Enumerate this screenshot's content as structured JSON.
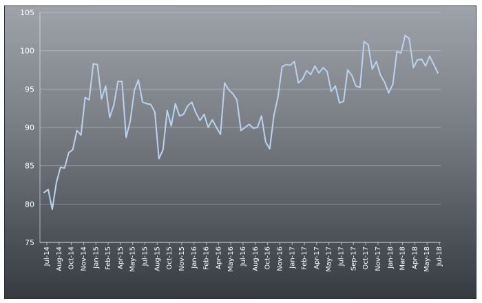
{
  "chart_data": {
    "type": "line",
    "title": "",
    "xlabel": "",
    "ylabel": "",
    "ylim": [
      75,
      105
    ],
    "yticks": [
      75,
      80,
      85,
      90,
      95,
      100,
      105
    ],
    "grid": true,
    "legend": "none",
    "line_color": "#b8d4f0",
    "x_tick_labels": [
      "Jul-14",
      "Aug-14",
      "Oct-14",
      "Nov-14",
      "Jan-15",
      "Feb-15",
      "Apr-15",
      "May-15",
      "Jul-15",
      "Aug-15",
      "Oct-15",
      "Nov-15",
      "Jan-16",
      "Feb-16",
      "Apr-16",
      "May-16",
      "Jul-16",
      "Aug-16",
      "Oct-16",
      "Nov-16",
      "Jan-17",
      "Feb-17",
      "Apr-17",
      "May-17",
      "Jul-17",
      "Sep-17",
      "Oct-17",
      "Nov-17",
      "Jan-18",
      "Mar-18",
      "Apr-18",
      "May-18",
      "Jul-18"
    ],
    "series": [
      {
        "values": [
          81.5,
          81.9,
          79.3,
          82.8,
          84.8,
          84.7,
          86.7,
          87.1,
          89.6,
          89.0,
          93.9,
          93.6,
          98.3,
          98.2,
          93.7,
          95.4,
          91.3,
          92.9,
          96.0,
          96.0,
          88.7,
          90.8,
          94.8,
          96.2,
          93.3,
          93.1,
          93.0,
          92.0,
          85.9,
          87.1,
          92.2,
          90.2,
          93.1,
          91.5,
          91.7,
          92.8,
          93.3,
          91.9,
          90.9,
          91.7,
          90.0,
          91.0,
          90.0,
          89.1,
          95.8,
          94.9,
          94.4,
          93.6,
          89.6,
          90.0,
          90.4,
          89.9,
          90.0,
          91.5,
          88.1,
          87.2,
          91.5,
          93.9,
          97.9,
          98.2,
          98.1,
          98.6,
          95.8,
          96.3,
          97.4,
          96.9,
          98.0,
          97.1,
          97.8,
          97.3,
          94.7,
          95.4,
          93.2,
          93.4,
          97.5,
          96.8,
          95.4,
          95.2,
          101.2,
          100.8,
          97.6,
          98.6,
          96.8,
          95.9,
          94.5,
          95.6,
          99.9,
          99.7,
          102.0,
          101.6,
          97.8,
          98.8,
          98.9,
          98.0,
          99.3,
          98.2,
          97.1
        ]
      }
    ]
  }
}
